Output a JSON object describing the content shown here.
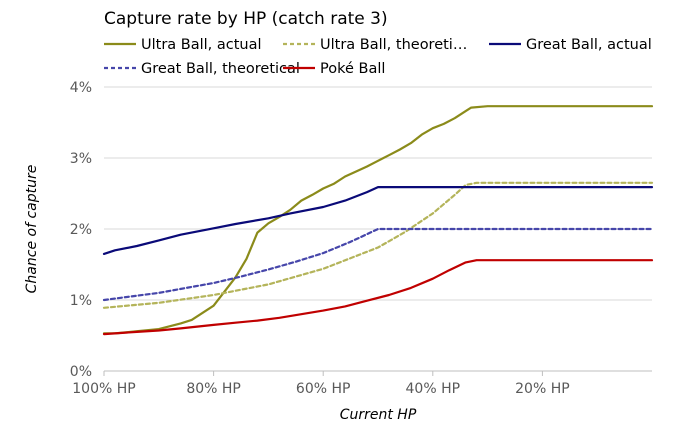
{
  "chart_data": {
    "type": "line",
    "title": "Capture rate by HP (catch rate 3)",
    "xlabel": "Current HP",
    "ylabel": "Chance of capture",
    "xlim": [
      100,
      0
    ],
    "ylim": [
      0,
      4
    ],
    "x_ticks": [
      100,
      80,
      60,
      40,
      20
    ],
    "x_tick_labels": [
      "100% HP",
      "80% HP",
      "60% HP",
      "40% HP",
      "20% HP"
    ],
    "y_ticks": [
      0,
      1,
      2,
      3,
      4
    ],
    "y_tick_labels": [
      "0%",
      "1%",
      "2%",
      "3%",
      "4%"
    ],
    "grid": "horizontal",
    "legend": "top",
    "series": [
      {
        "name": "Ultra Ball, actual",
        "color": "#8b8b1a",
        "dash": "solid",
        "x": [
          100,
          98,
          94,
          90,
          86,
          84,
          80,
          76,
          74,
          72,
          70,
          68,
          66,
          64,
          62,
          60,
          58,
          56,
          54,
          52,
          50,
          48,
          46,
          44,
          42,
          40,
          38,
          36,
          34,
          33,
          30,
          20,
          10,
          0
        ],
        "y": [
          0.53,
          0.53,
          0.56,
          0.59,
          0.67,
          0.72,
          0.92,
          1.32,
          1.58,
          1.95,
          2.08,
          2.17,
          2.27,
          2.4,
          2.48,
          2.57,
          2.64,
          2.74,
          2.81,
          2.88,
          2.96,
          3.04,
          3.12,
          3.21,
          3.33,
          3.42,
          3.48,
          3.56,
          3.66,
          3.71,
          3.73,
          3.73,
          3.73,
          3.73
        ]
      },
      {
        "name": "Ultra Ball, theoretical",
        "color": "#b4b45a",
        "dash": "dashed",
        "x": [
          100,
          90,
          80,
          70,
          60,
          50,
          45,
          40,
          36,
          34,
          32,
          30,
          20,
          10,
          0
        ],
        "y": [
          0.89,
          0.96,
          1.07,
          1.22,
          1.44,
          1.74,
          1.96,
          2.22,
          2.48,
          2.62,
          2.65,
          2.65,
          2.65,
          2.65,
          2.65
        ]
      },
      {
        "name": "Great Ball, actual",
        "color": "#0a0a78",
        "dash": "solid",
        "x": [
          100,
          98,
          94,
          90,
          86,
          80,
          76,
          70,
          66,
          60,
          56,
          52,
          50,
          45,
          40,
          30,
          20,
          10,
          0
        ],
        "y": [
          1.65,
          1.7,
          1.76,
          1.84,
          1.92,
          2.01,
          2.07,
          2.15,
          2.22,
          2.31,
          2.4,
          2.52,
          2.59,
          2.59,
          2.59,
          2.59,
          2.59,
          2.59,
          2.59
        ]
      },
      {
        "name": "Great Ball, theoretical",
        "color": "#4646aa",
        "dash": "dashed",
        "x": [
          100,
          95,
          90,
          85,
          80,
          75,
          70,
          65,
          60,
          55,
          50,
          45,
          40,
          30,
          20,
          10,
          0
        ],
        "y": [
          1.0,
          1.05,
          1.1,
          1.17,
          1.24,
          1.33,
          1.43,
          1.54,
          1.66,
          1.82,
          2.0,
          2.0,
          2.0,
          2.0,
          2.0,
          2.0,
          2.0
        ]
      },
      {
        "name": "Poké Ball",
        "color": "#c00000",
        "dash": "solid",
        "x": [
          100,
          98,
          94,
          90,
          86,
          80,
          76,
          72,
          68,
          64,
          60,
          56,
          52,
          48,
          44,
          40,
          37,
          34,
          32,
          30,
          20,
          10,
          0
        ],
        "y": [
          0.52,
          0.53,
          0.55,
          0.57,
          0.6,
          0.65,
          0.68,
          0.71,
          0.75,
          0.8,
          0.85,
          0.91,
          0.99,
          1.07,
          1.17,
          1.3,
          1.42,
          1.53,
          1.56,
          1.56,
          1.56,
          1.56,
          1.56
        ]
      }
    ]
  }
}
